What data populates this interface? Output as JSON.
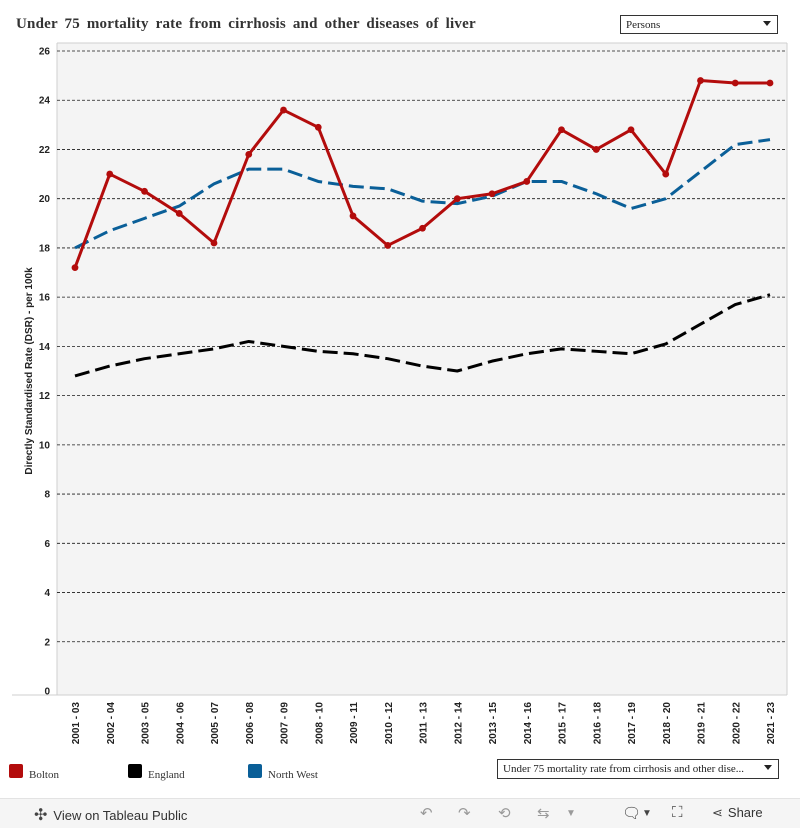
{
  "title": "Under 75 mortality rate from cirrhosis and other diseases of liver",
  "filters": {
    "sex": "Persons",
    "indicator": "Under 75 mortality rate from cirrhosis and other dise..."
  },
  "chart_data": {
    "type": "line",
    "title": "Under 75 mortality rate from cirrhosis and other diseases of liver",
    "xlabel": "",
    "ylabel": "Directly Standardised Rate (DSR) - per 100k",
    "ylim": [
      0,
      26
    ],
    "yticks": [
      0,
      2,
      4,
      6,
      8,
      10,
      12,
      14,
      16,
      18,
      20,
      22,
      24,
      26
    ],
    "grid": true,
    "categories": [
      "2001 - 03",
      "2002 - 04",
      "2003 - 05",
      "2004 - 06",
      "2005 - 07",
      "2006 - 08",
      "2007 - 09",
      "2008 - 10",
      "2009 - 11",
      "2010 - 12",
      "2011 - 13",
      "2012 - 14",
      "2013 - 15",
      "2014 - 16",
      "2015 - 17",
      "2016 - 18",
      "2017 - 19",
      "2018 - 20",
      "2019 - 21",
      "2020 - 22",
      "2021 - 23"
    ],
    "series": [
      {
        "name": "Bolton",
        "color": "#b30c0c",
        "style": "solid-markers",
        "values": [
          17.2,
          21.0,
          20.3,
          19.4,
          18.2,
          21.8,
          23.6,
          22.9,
          19.3,
          18.1,
          18.8,
          20.0,
          20.2,
          20.7,
          22.8,
          22.0,
          22.8,
          21.0,
          24.8,
          24.7,
          24.7
        ]
      },
      {
        "name": "England",
        "color": "#000000",
        "style": "dashed",
        "values": [
          12.8,
          13.2,
          13.5,
          13.7,
          13.9,
          14.2,
          14.0,
          13.8,
          13.7,
          13.5,
          13.2,
          13.0,
          13.4,
          13.7,
          13.9,
          13.8,
          13.7,
          14.1,
          14.9,
          15.7,
          16.1
        ]
      },
      {
        "name": "North West",
        "color": "#0a5f98",
        "style": "dashed",
        "values": [
          18.0,
          18.7,
          19.2,
          19.7,
          20.6,
          21.2,
          21.2,
          20.7,
          20.5,
          20.4,
          19.9,
          19.8,
          20.1,
          20.7,
          20.7,
          20.2,
          19.6,
          20.0,
          21.1,
          22.2,
          22.4
        ]
      }
    ]
  },
  "legend": [
    {
      "label": "Bolton",
      "color": "#b30c0c"
    },
    {
      "label": "England",
      "color": "#000000"
    },
    {
      "label": "North West",
      "color": "#0a5f98"
    }
  ],
  "footer": {
    "view_label": "View on Tableau Public",
    "share_label": "Share"
  }
}
